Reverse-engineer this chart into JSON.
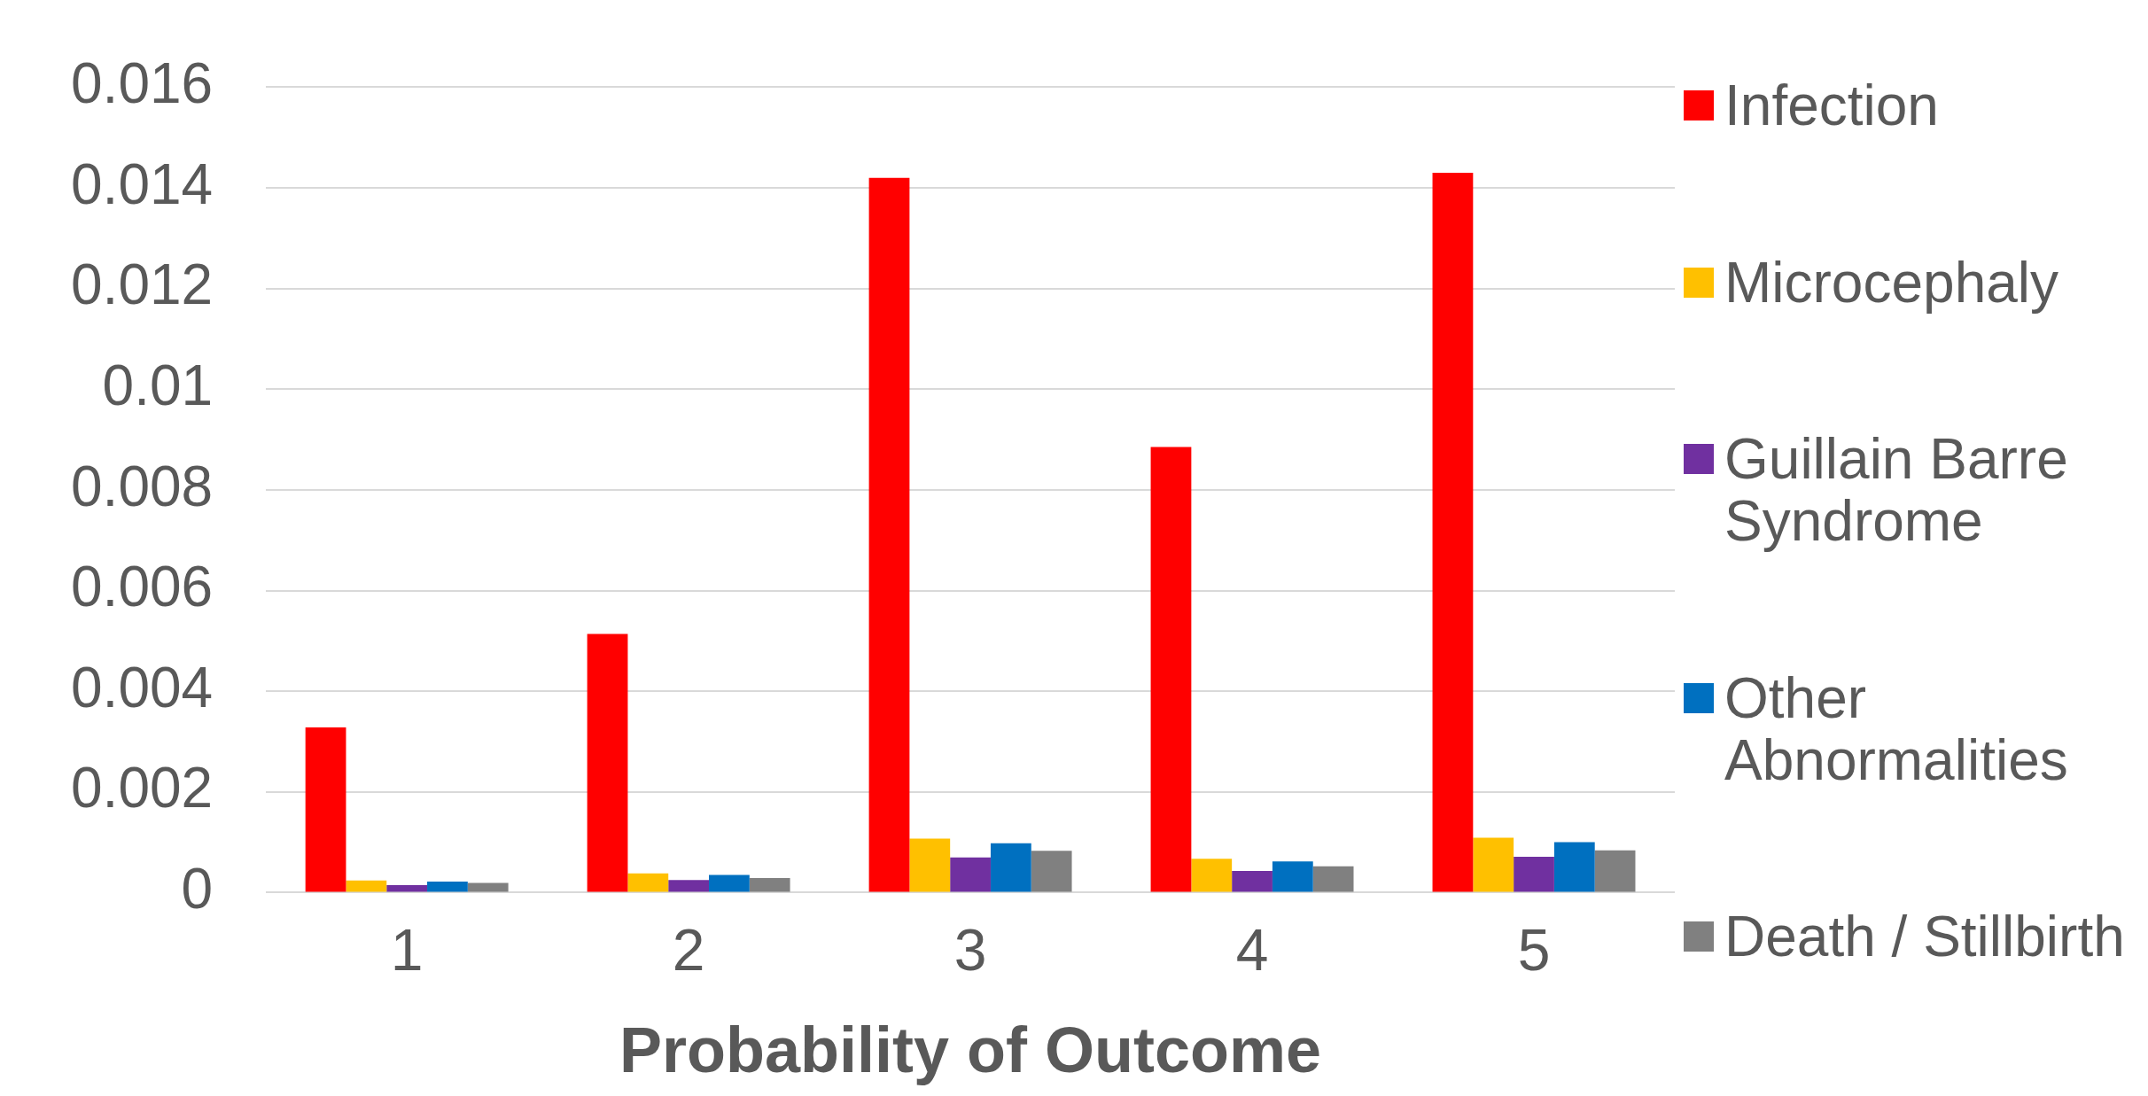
{
  "chart_data": {
    "type": "bar",
    "xlabel": "Probability of Outcome",
    "categories": [
      "1",
      "2",
      "3",
      "4",
      "5"
    ],
    "series": [
      {
        "name": "Infection",
        "color": "#ff0000",
        "values": [
          0.00328,
          0.00514,
          0.0142,
          0.00885,
          0.0143
        ]
      },
      {
        "name": "Microcephaly",
        "color": "#ffc000",
        "values": [
          0.00024,
          0.00038,
          0.00107,
          0.00067,
          0.00109
        ]
      },
      {
        "name": "Guillain Barre Syndrome",
        "color": "#7030a0",
        "values": [
          0.00015,
          0.00025,
          0.0007,
          0.00043,
          0.00071
        ]
      },
      {
        "name": "Other Abnormalities",
        "color": "#0070c0",
        "values": [
          0.00022,
          0.00035,
          0.00098,
          0.00062,
          0.001
        ]
      },
      {
        "name": "Death / Stillbirth",
        "color": "#808080",
        "values": [
          0.00019,
          0.00029,
          0.00083,
          0.00052,
          0.00084
        ]
      }
    ],
    "ylim": [
      0,
      0.016
    ],
    "yticks": [
      0,
      0.002,
      0.004,
      0.006,
      0.008,
      0.01,
      0.012,
      0.014,
      0.016
    ],
    "grid": "y",
    "legend": "right"
  }
}
